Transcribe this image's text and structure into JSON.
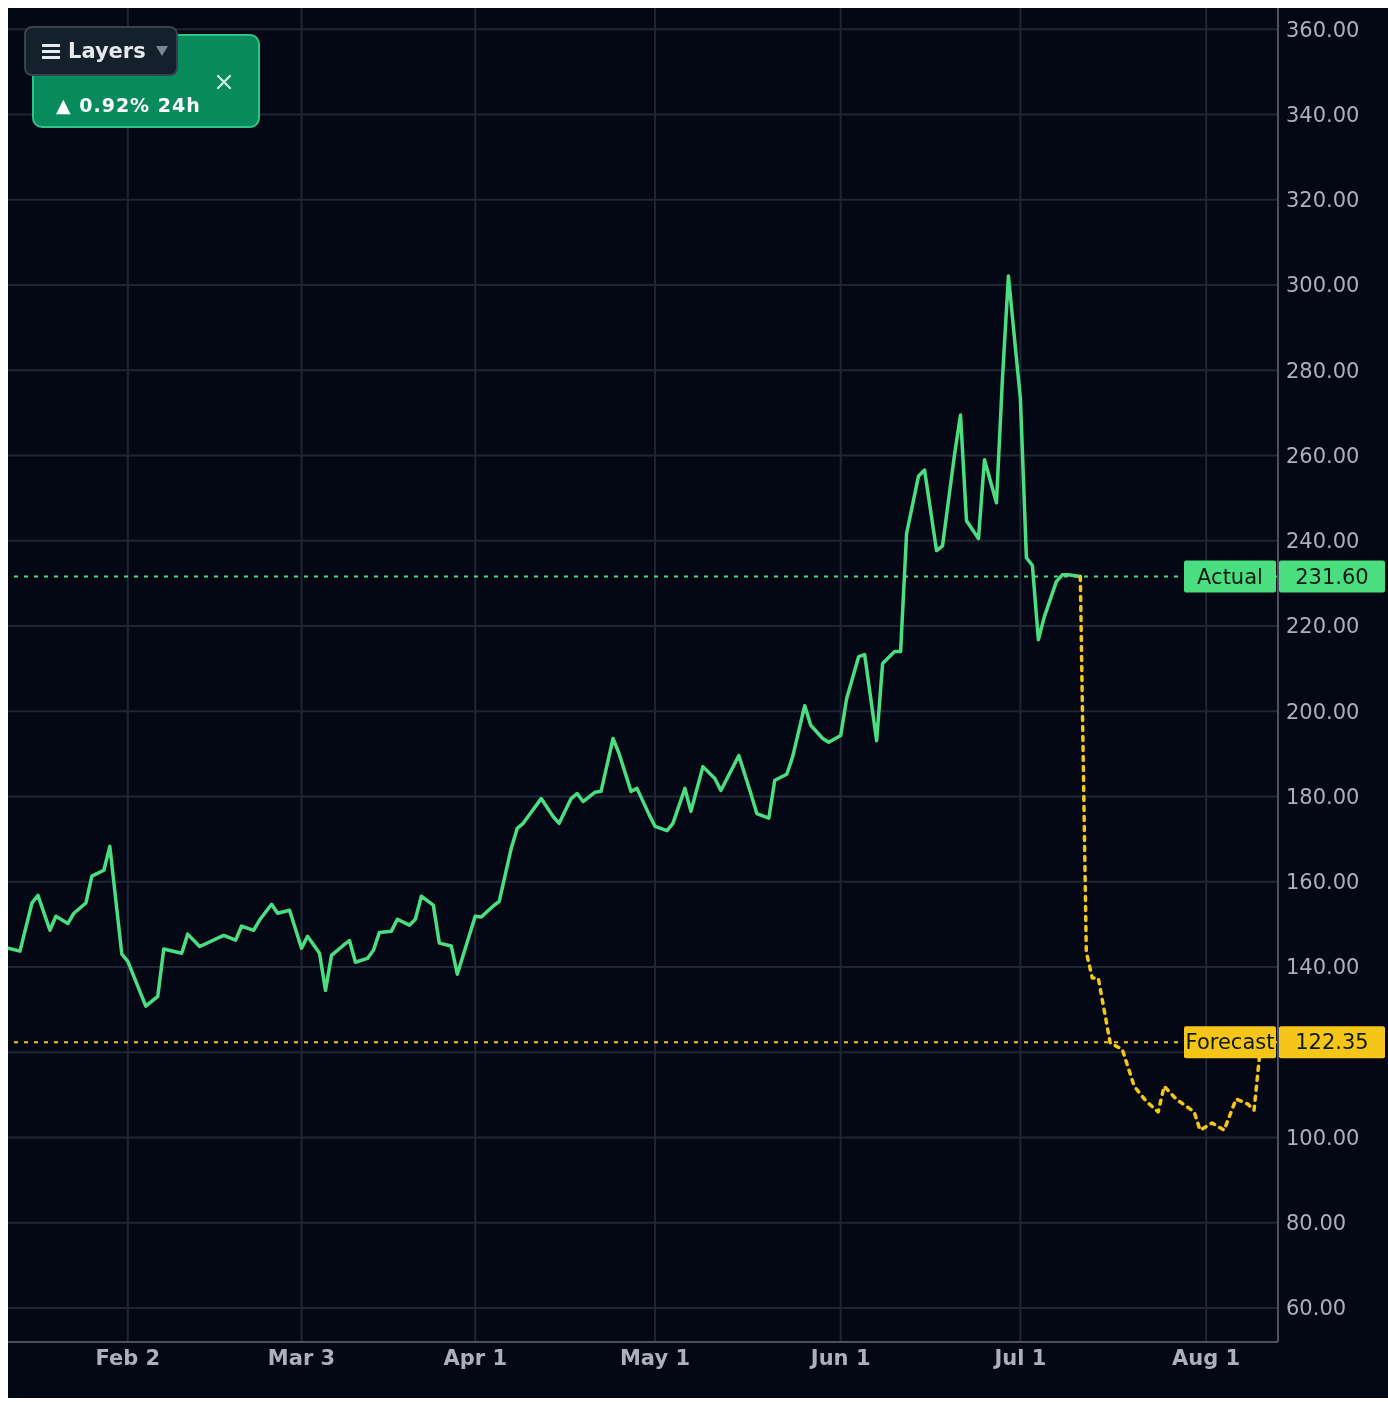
{
  "chart_data": {
    "type": "line",
    "annotations": [
      "Layers",
      "▲ 0.92% 24h",
      "231.60",
      "122.35"
    ],
    "x": [
      "--01-13",
      "--01-15",
      "--01-17",
      "--01-18",
      "--01-20",
      "--01-21",
      "--01-23",
      "--01-24",
      "--01-26",
      "--01-27",
      "--01-29",
      "--01-30",
      "--02-01",
      "--02-02",
      "--02-05",
      "--02-07",
      "--02-08",
      "--02-11",
      "--02-12",
      "--02-14",
      "--02-18",
      "--02-20",
      "--02-21",
      "--02-23",
      "--02-24",
      "--02-26",
      "--02-27",
      "--03-01",
      "--03-03",
      "--03-04",
      "--03-06",
      "--03-07",
      "--03-08",
      "--03-10",
      "--03-11",
      "--03-12",
      "--03-14",
      "--03-15",
      "--03-16",
      "--03-18",
      "--03-19",
      "--03-21",
      "--03-22",
      "--03-23",
      "--03-25",
      "--03-26",
      "--03-28",
      "--03-29",
      "--03-31",
      "--04-01",
      "--04-02",
      "--04-04",
      "--04-05",
      "--04-07",
      "--04-08",
      "--04-09",
      "--04-12",
      "--04-14",
      "--04-15",
      "--04-17",
      "--04-18",
      "--04-19",
      "--04-21",
      "--04-22",
      "--04-24",
      "--04-25",
      "--04-27",
      "--04-28",
      "--04-30",
      "--05-01",
      "--05-03",
      "--05-04",
      "--05-06",
      "--05-07",
      "--05-09",
      "--05-11",
      "--05-12",
      "--05-15",
      "--05-17",
      "--05-18",
      "--05-20",
      "--05-21",
      "--05-23",
      "--05-24",
      "--05-26",
      "--05-27",
      "--05-29",
      "--05-30",
      "--06-01",
      "--06-02",
      "--06-04",
      "--06-05",
      "--06-07",
      "--06-08",
      "--06-10",
      "--06-11",
      "--06-12",
      "--06-14",
      "--06-15",
      "--06-17",
      "--06-18",
      "--06-20",
      "--06-21",
      "--06-22",
      "--06-24",
      "--06-25",
      "--06-27",
      "--06-28",
      "--06-29",
      "--07-01",
      "--07-02",
      "--07-03",
      "--07-04",
      "--07-05",
      "--07-07",
      "--07-08",
      "--07-09",
      "--07-11"
    ],
    "series": [
      {
        "type": "line",
        "color": "#4ade80",
        "line_style": "solid",
        "values": [
          144.4,
          143.7,
          155,
          156.8,
          148.6,
          151.9,
          150.2,
          152.6,
          155,
          161.3,
          162.7,
          168.3,
          143,
          141.3,
          130.8,
          133.1,
          144.2,
          143.2,
          147.7,
          144.8,
          147.4,
          146.3,
          149.6,
          148.6,
          151,
          154.7,
          152.6,
          153.3,
          144.4,
          147.2,
          143.2,
          134.5,
          142.7,
          145.1,
          146.2,
          141.1,
          142,
          143.9,
          148.1,
          148.4,
          151.2,
          149.8,
          151.2,
          156.6,
          154.5,
          145.6,
          144.9,
          138.3,
          147.4,
          151.9,
          151.7,
          154.3,
          155.4,
          167.8,
          172.5,
          173.7,
          179.5,
          175.3,
          173.7,
          179.5,
          180.7,
          178.8,
          181,
          181.2,
          193.6,
          190.1,
          181.2,
          181.9,
          175.8,
          173,
          172,
          173.7,
          181.9,
          176.5,
          187,
          184.2,
          181.4,
          189.6,
          180.7,
          176,
          174.9,
          183.8,
          185.2,
          189.4,
          201.3,
          196.7,
          193.6,
          192.7,
          194.3,
          203,
          212.8,
          213.3,
          193.1,
          211.2,
          214,
          214,
          241.7,
          255.2,
          256.6,
          237.7,
          238.8,
          260.2,
          269.5,
          244.7,
          240.5,
          259,
          248.9,
          278,
          302.1,
          273.3,
          236,
          234.2,
          216.8,
          222.2,
          230.4,
          232,
          232,
          231.6
        ]
      },
      {
        "type": "line",
        "color": "#f5c518",
        "line_style": "dotted",
        "x": [
          "--07-11",
          "--07-12",
          "--07-13",
          "--07-14",
          "--07-16",
          "--07-18",
          "--07-20",
          "--07-22",
          "--07-24",
          "--07-25",
          "--07-27",
          "--07-30",
          "--07-31",
          "--08-02",
          "--08-04",
          "--08-06",
          "--08-08",
          "--08-09",
          "--08-10"
        ],
        "values": [
          231.6,
          143.5,
          137.4,
          137.4,
          122.1,
          120.7,
          112,
          108.5,
          106,
          112,
          109,
          106,
          101.7,
          103.4,
          101.7,
          109,
          107.8,
          106.4,
          120.3
        ]
      }
    ],
    "xlim": [
      "--01-13",
      "--08-13"
    ],
    "xticks": [
      {
        "value": "--02-02",
        "label": "Feb 2"
      },
      {
        "value": "--03-03",
        "label": "Mar 3"
      },
      {
        "value": "--04-01",
        "label": "Apr 1"
      },
      {
        "value": "--05-01",
        "label": "May 1"
      },
      {
        "value": "--06-01",
        "label": "Jun 1"
      },
      {
        "value": "--07-01",
        "label": "Jul 1"
      },
      {
        "value": "--08-01",
        "label": "Aug 1"
      }
    ],
    "ylim": [
      52,
      365
    ],
    "yticks": [
      {
        "value": 60,
        "label": "60.00"
      },
      {
        "value": 80,
        "label": "80.00"
      },
      {
        "value": 100,
        "label": "100.00"
      },
      {
        "value": 120,
        "label": null
      },
      {
        "value": 140,
        "label": "140.00"
      },
      {
        "value": 160,
        "label": "160.00"
      },
      {
        "value": 180,
        "label": "180.00"
      },
      {
        "value": 200,
        "label": "200.00"
      },
      {
        "value": 220,
        "label": "220.00"
      },
      {
        "value": 240,
        "label": "240.00"
      },
      {
        "value": 260,
        "label": "260.00"
      },
      {
        "value": 280,
        "label": "280.00"
      },
      {
        "value": 300,
        "label": "300.00"
      },
      {
        "value": 320,
        "label": "320.00"
      },
      {
        "value": 340,
        "label": "340.00"
      },
      {
        "value": 360,
        "label": "360.00"
      }
    ],
    "ref_lines": [
      {
        "axis": "y",
        "value": 231.6,
        "label": "Actual",
        "color": "#4ade80",
        "line_style": "dotted"
      },
      {
        "axis": "y",
        "value": 122.35,
        "label": "Forecast",
        "color": "#f5c518",
        "line_style": "dotted"
      }
    ],
    "grid": true,
    "legend": false
  }
}
